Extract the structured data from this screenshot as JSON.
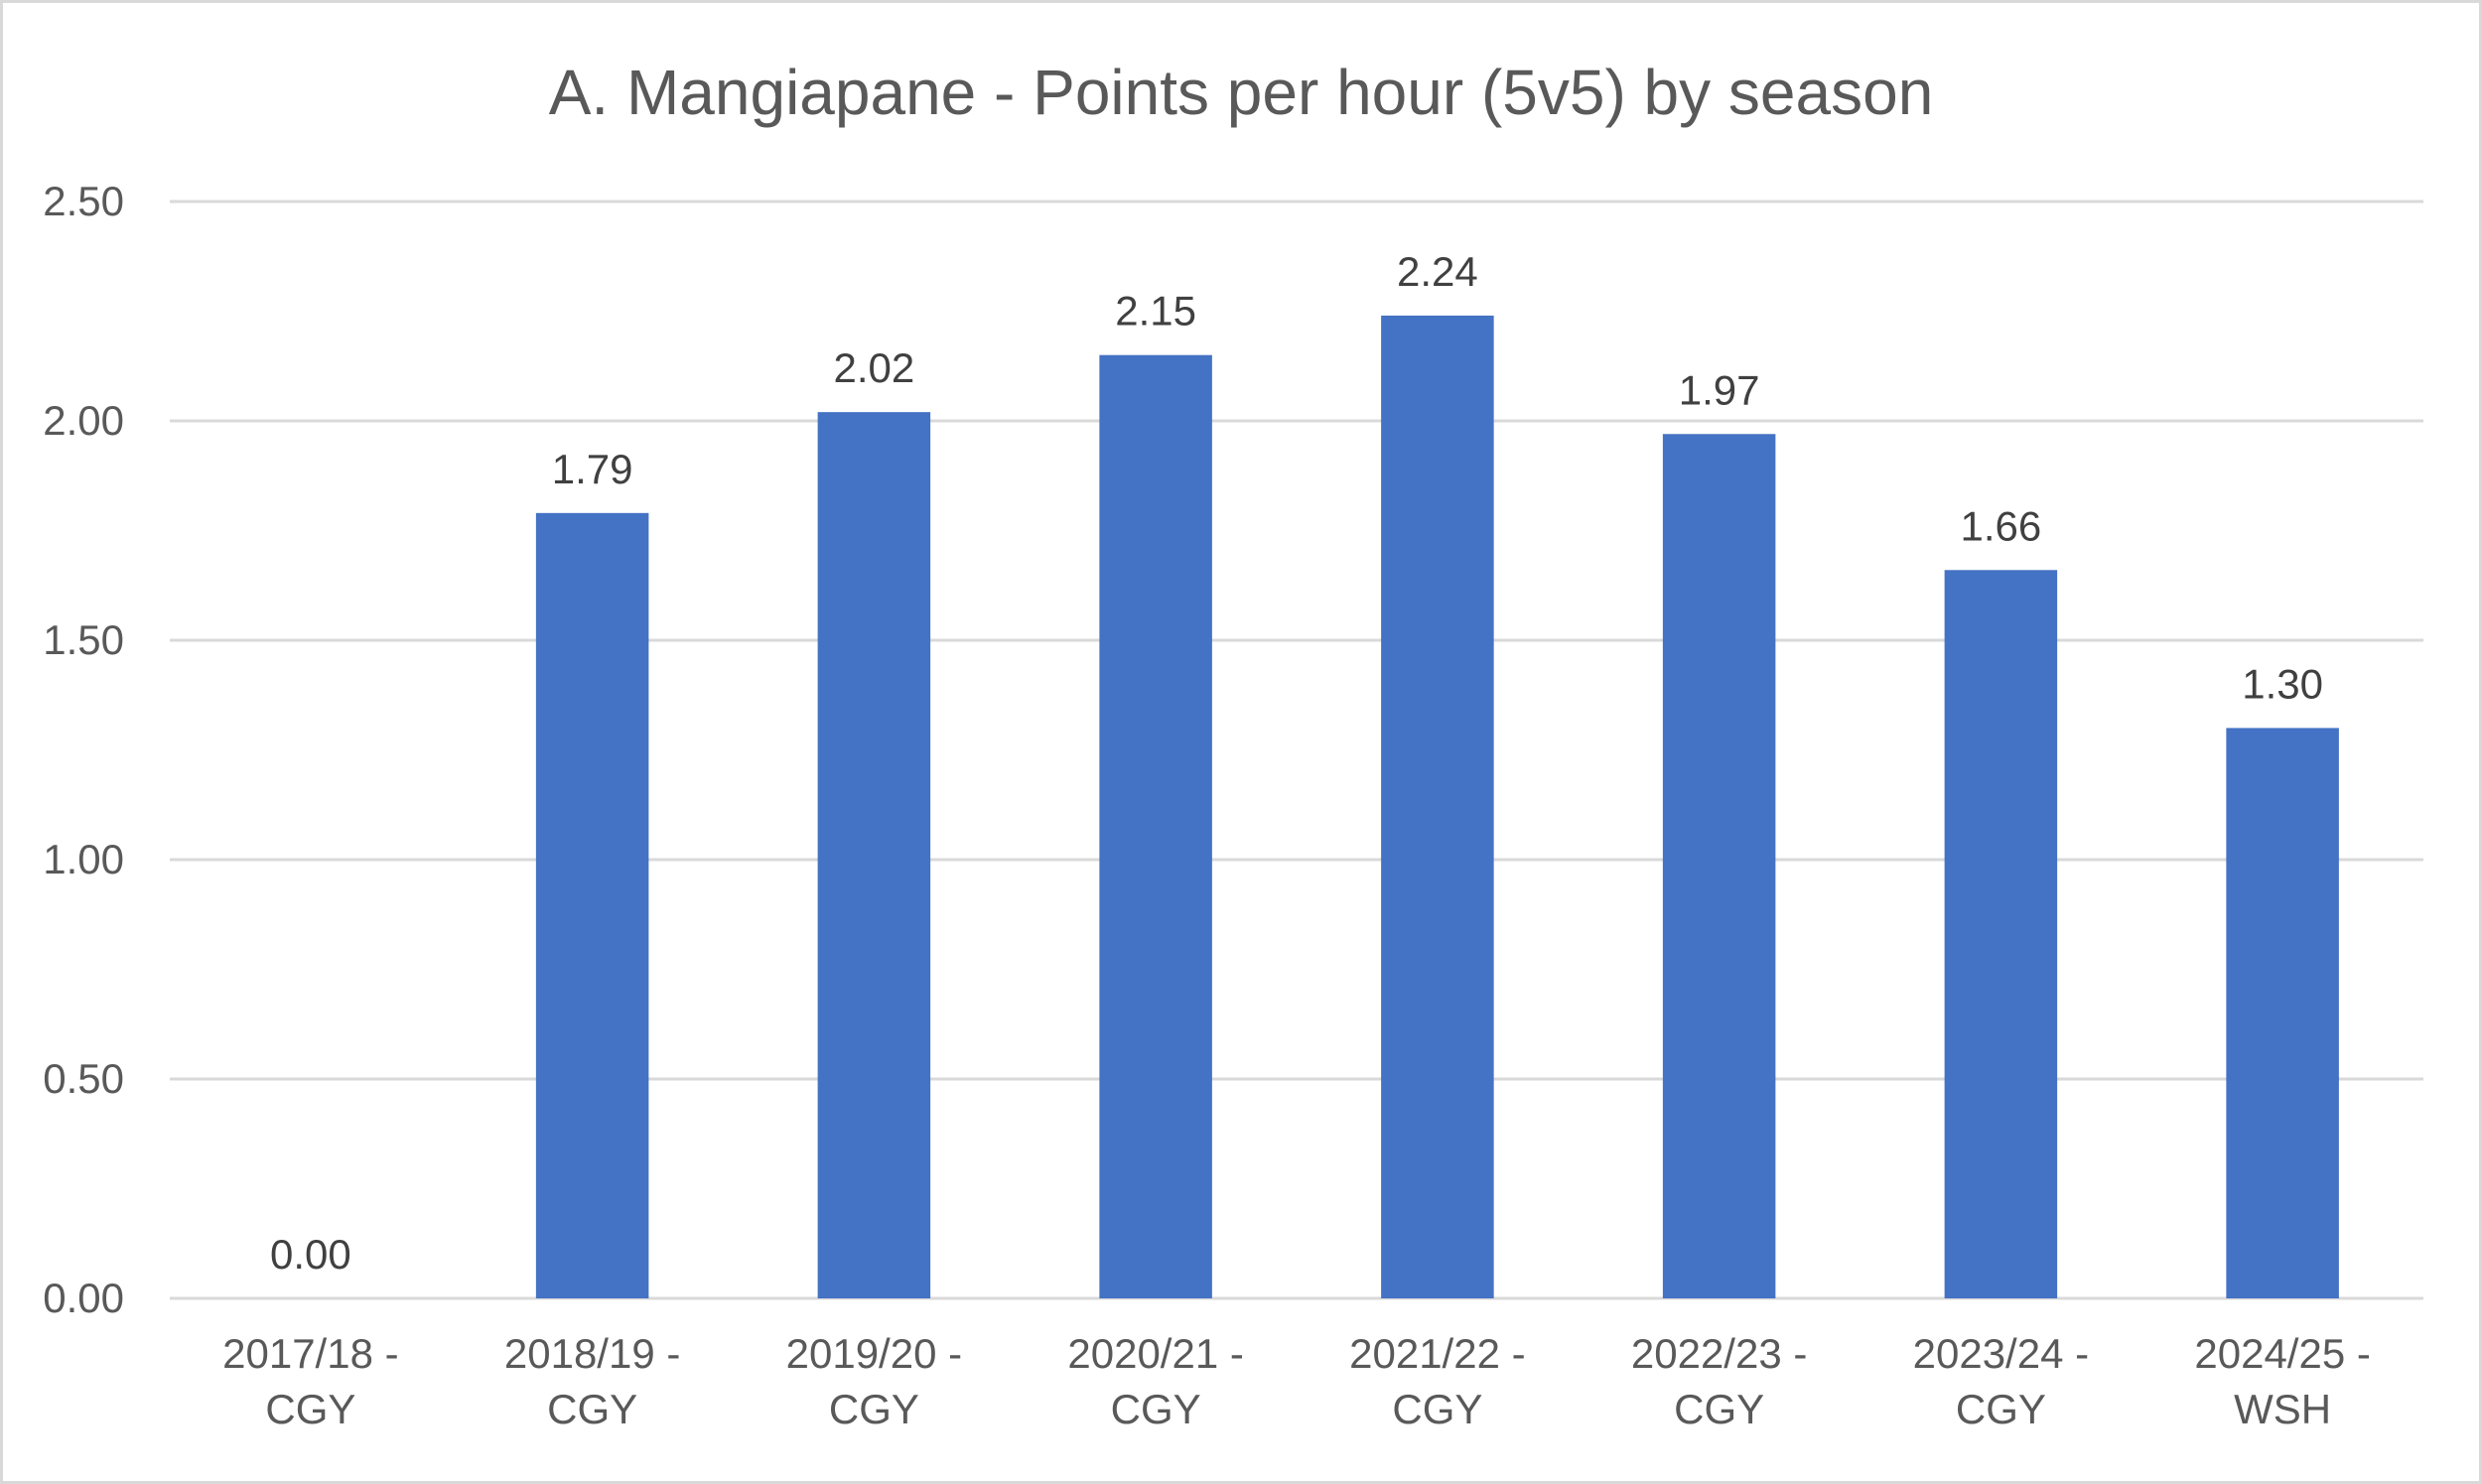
{
  "chart_data": {
    "type": "bar",
    "title": "A. Mangiapane - Points per hour (5v5) by season",
    "xlabel": "",
    "ylabel": "",
    "categories": [
      [
        "2017/18 -",
        "CGY"
      ],
      [
        "2018/19 -",
        "CGY"
      ],
      [
        "2019/20 -",
        "CGY"
      ],
      [
        "2020/21 -",
        "CGY"
      ],
      [
        "2021/22 -",
        "CGY"
      ],
      [
        "2022/23 -",
        "CGY"
      ],
      [
        "2023/24 -",
        "CGY"
      ],
      [
        "2024/25 -",
        "WSH"
      ]
    ],
    "values": [
      0.0,
      1.79,
      2.02,
      2.15,
      2.24,
      1.97,
      1.66,
      1.3
    ],
    "data_labels": [
      "0.00",
      "1.79",
      "2.02",
      "2.15",
      "2.24",
      "1.97",
      "1.66",
      "1.30"
    ],
    "ylim": [
      0,
      2.5
    ],
    "y_ticks": [
      0,
      0.5,
      1,
      1.5,
      2,
      2.5
    ],
    "y_tick_labels": [
      "0.00",
      "0.50",
      "1.00",
      "1.50",
      "2.00",
      "2.50"
    ],
    "grid": true,
    "legend": "none",
    "bar_color": "#4472c4",
    "grid_color": "#d9d9d9",
    "text_color": "#595959"
  }
}
